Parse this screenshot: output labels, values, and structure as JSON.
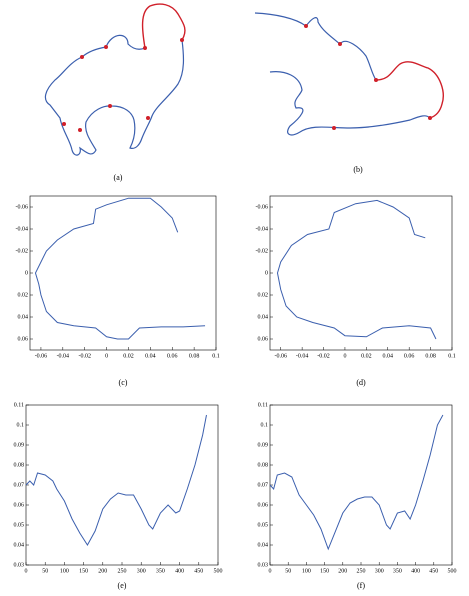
{
  "contours": [
    {
      "caption": "(a)"
    },
    {
      "caption": "(b)"
    }
  ],
  "chart_data": [
    {
      "type": "line",
      "caption": "(c)",
      "color": "#3b5fae",
      "y_inverted": true,
      "x": [
        0.065,
        0.06,
        0.05,
        0.04,
        0.02,
        0.0,
        -0.01,
        -0.012,
        -0.03,
        -0.045,
        -0.055,
        -0.06,
        -0.065,
        -0.062,
        -0.06,
        -0.055,
        -0.045,
        -0.03,
        -0.01,
        0.0,
        0.01,
        0.02,
        0.03,
        0.05,
        0.07,
        0.09
      ],
      "values": [
        -0.037,
        -0.05,
        -0.06,
        -0.068,
        -0.068,
        -0.062,
        -0.058,
        -0.045,
        -0.04,
        -0.03,
        -0.02,
        -0.01,
        0,
        0.01,
        0.02,
        0.035,
        0.045,
        0.048,
        0.05,
        0.058,
        0.06,
        0.06,
        0.05,
        0.049,
        0.049,
        0.048
      ],
      "xlim": [
        -0.07,
        0.1
      ],
      "ylim": [
        -0.07,
        0.07
      ],
      "xticks": [
        -0.06,
        -0.04,
        -0.02,
        0,
        0.02,
        0.04,
        0.06,
        0.08,
        0.1
      ],
      "yticks": [
        -0.06,
        -0.04,
        -0.02,
        0,
        0.02,
        0.04,
        0.06
      ]
    },
    {
      "type": "line",
      "caption": "(d)",
      "color": "#3b5fae",
      "y_inverted": true,
      "x": [
        0.075,
        0.065,
        0.06,
        0.045,
        0.03,
        0.01,
        -0.01,
        -0.015,
        -0.035,
        -0.05,
        -0.06,
        -0.063,
        -0.06,
        -0.055,
        -0.045,
        -0.03,
        -0.01,
        0.0,
        0.02,
        0.035,
        0.06,
        0.08,
        0.085
      ],
      "values": [
        -0.032,
        -0.035,
        -0.05,
        -0.06,
        -0.066,
        -0.063,
        -0.055,
        -0.04,
        -0.035,
        -0.025,
        -0.01,
        0,
        0.015,
        0.03,
        0.04,
        0.045,
        0.05,
        0.057,
        0.058,
        0.05,
        0.048,
        0.05,
        0.06
      ],
      "xlim": [
        -0.07,
        0.1
      ],
      "ylim": [
        -0.07,
        0.07
      ],
      "xticks": [
        -0.06,
        -0.04,
        -0.02,
        0,
        0.02,
        0.04,
        0.06,
        0.08,
        0.1
      ],
      "yticks": [
        -0.06,
        -0.04,
        -0.02,
        0,
        0.02,
        0.04,
        0.06
      ]
    },
    {
      "type": "line",
      "caption": "(e)",
      "color": "#3b5fae",
      "y_inverted": false,
      "x": [
        0,
        10,
        20,
        30,
        50,
        70,
        80,
        100,
        120,
        140,
        160,
        180,
        200,
        220,
        240,
        260,
        280,
        300,
        320,
        330,
        350,
        370,
        390,
        400,
        420,
        440,
        460,
        470
      ],
      "values": [
        0.07,
        0.072,
        0.07,
        0.076,
        0.075,
        0.072,
        0.068,
        0.062,
        0.053,
        0.046,
        0.04,
        0.047,
        0.058,
        0.063,
        0.066,
        0.065,
        0.065,
        0.058,
        0.05,
        0.048,
        0.056,
        0.06,
        0.056,
        0.057,
        0.068,
        0.08,
        0.095,
        0.105
      ],
      "xlim": [
        0,
        500
      ],
      "ylim": [
        0.03,
        0.11
      ],
      "xticks": [
        0,
        50,
        100,
        150,
        200,
        250,
        300,
        350,
        400,
        450,
        500
      ],
      "yticks": [
        0.03,
        0.04,
        0.05,
        0.06,
        0.07,
        0.08,
        0.09,
        0.1,
        0.11
      ]
    },
    {
      "type": "line",
      "caption": "(f)",
      "color": "#3b5fae",
      "y_inverted": false,
      "x": [
        0,
        10,
        20,
        40,
        60,
        80,
        100,
        120,
        140,
        160,
        180,
        200,
        220,
        240,
        260,
        280,
        300,
        320,
        330,
        350,
        370,
        385,
        400,
        420,
        440,
        460,
        475
      ],
      "values": [
        0.07,
        0.068,
        0.075,
        0.076,
        0.074,
        0.065,
        0.06,
        0.055,
        0.048,
        0.038,
        0.047,
        0.056,
        0.061,
        0.063,
        0.064,
        0.064,
        0.06,
        0.05,
        0.048,
        0.056,
        0.057,
        0.053,
        0.06,
        0.072,
        0.085,
        0.1,
        0.105
      ],
      "xlim": [
        0,
        500
      ],
      "ylim": [
        0.03,
        0.11
      ],
      "xticks": [
        0,
        50,
        100,
        150,
        200,
        250,
        300,
        350,
        400,
        450,
        500
      ],
      "yticks": [
        0.03,
        0.04,
        0.05,
        0.06,
        0.07,
        0.08,
        0.09,
        0.1,
        0.11
      ]
    }
  ]
}
